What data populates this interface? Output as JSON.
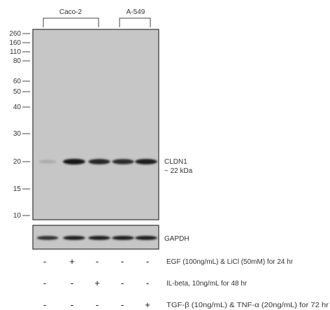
{
  "groups": [
    {
      "label": "Caco-2"
    },
    {
      "label": "A-549"
    }
  ],
  "mw_markers": [
    "260",
    "160",
    "110",
    "80",
    "60",
    "50",
    "40",
    "30",
    "20",
    "15",
    "10"
  ],
  "band_labels": {
    "target_name": "CLDN1",
    "target_size": "~ 22 kDa",
    "loading_control": "GAPDH"
  },
  "treatments": [
    {
      "label": "EGF (100ng/mL) & LiCl (50mM) for 24 hr",
      "signs": [
        "-",
        "+",
        "-",
        "-",
        "-"
      ]
    },
    {
      "label": "IL-beta,  10ng/mL for 48 hr",
      "signs": [
        "-",
        "-",
        "+",
        "-",
        "-"
      ]
    },
    {
      "label": "TGF-β (10ng/mL) & TNF-α (20ng/mL)  for 72 hr",
      "signs": [
        "-",
        "-",
        "-",
        "-",
        "+"
      ]
    }
  ],
  "lanes": [
    {
      "cldn1_intensity": 0.15,
      "gapdh_intensity": 0.85
    },
    {
      "cldn1_intensity": 1.0,
      "gapdh_intensity": 0.95
    },
    {
      "cldn1_intensity": 0.9,
      "gapdh_intensity": 0.95
    },
    {
      "cldn1_intensity": 0.88,
      "gapdh_intensity": 0.95
    },
    {
      "cldn1_intensity": 0.95,
      "gapdh_intensity": 0.95
    }
  ],
  "colors": {
    "blot_background": "#c6c6c6",
    "band": "#141414",
    "frame": "#333333"
  }
}
